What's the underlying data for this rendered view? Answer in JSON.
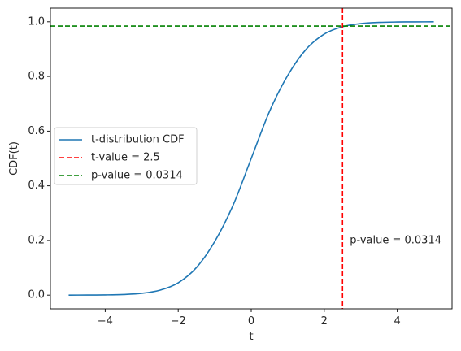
{
  "chart_data": {
    "type": "line",
    "title": "",
    "xlabel": "t",
    "ylabel": "CDF(t)",
    "xlim": [
      -5.5,
      5.5
    ],
    "ylim": [
      -0.05,
      1.05
    ],
    "xticks": [
      -4,
      -2,
      0,
      2,
      4
    ],
    "xtick_labels": [
      "−4",
      "−2",
      "0",
      "2",
      "4"
    ],
    "yticks": [
      0.0,
      0.2,
      0.4,
      0.6,
      0.8,
      1.0
    ],
    "ytick_labels": [
      "0.0",
      "0.2",
      "0.4",
      "0.6",
      "0.8",
      "1.0"
    ],
    "grid": false,
    "legend_position": "center-left",
    "series": [
      {
        "name": "t-distribution CDF",
        "color": "#1f77b4",
        "style": "solid",
        "x": [
          -5.0,
          -4.5,
          -4.0,
          -3.5,
          -3.0,
          -2.5,
          -2.0,
          -1.5,
          -1.0,
          -0.5,
          0.0,
          0.5,
          1.0,
          1.5,
          2.0,
          2.5,
          3.0,
          3.5,
          4.0,
          4.5,
          5.0
        ],
        "y": [
          0.0001,
          0.0003,
          0.0008,
          0.0023,
          0.0066,
          0.018,
          0.045,
          0.101,
          0.196,
          0.328,
          0.5,
          0.672,
          0.804,
          0.899,
          0.955,
          0.982,
          0.9934,
          0.9977,
          0.9992,
          0.9997,
          0.9999
        ]
      }
    ],
    "reference_lines": [
      {
        "name": "t-value = 2.5",
        "orientation": "vertical",
        "value": 2.5,
        "color": "#ff0000",
        "style": "dashed"
      },
      {
        "name": "p-value = 0.0314",
        "orientation": "horizontal",
        "value": 0.9843,
        "color": "#008000",
        "style": "dashed"
      }
    ],
    "annotations": [
      {
        "text": "p-value = 0.0314",
        "x": 2.7,
        "y": 0.2,
        "color": "#008000"
      }
    ]
  }
}
